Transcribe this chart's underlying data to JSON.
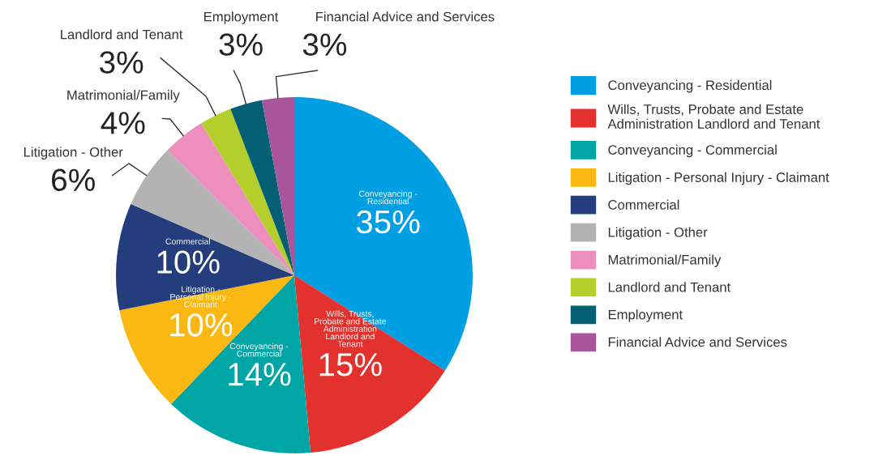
{
  "chart_data": {
    "type": "pie",
    "categories": [
      "Conveyancing - Residential",
      "Wills, Trusts, Probate and Estate Administration Landlord and Tenant",
      "Conveyancing - Commercial",
      "Litigation - Personal Injury - Claimant",
      "Commercial",
      "Litigation - Other",
      "Matrimonial/Family",
      "Landlord and Tenant",
      "Employment",
      "Financial Advice and Services"
    ],
    "values": [
      35,
      15,
      14,
      10,
      10,
      6,
      4,
      3,
      3,
      3
    ],
    "value_labels": [
      "35%",
      "15%",
      "14%",
      "10%",
      "10%",
      "6%",
      "4%",
      "3%",
      "3%",
      "3%"
    ],
    "colors": [
      "#009fe3",
      "#e3312d",
      "#00a6a6",
      "#fbb812",
      "#233d7d",
      "#b3b3b3",
      "#ec8fbd",
      "#b4cf2c",
      "#035f73",
      "#a9559c"
    ],
    "legend": "right"
  }
}
